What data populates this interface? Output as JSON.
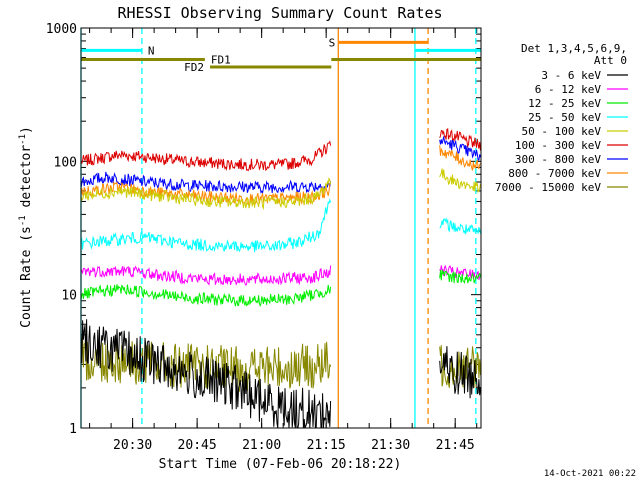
{
  "chart_data": {
    "type": "line",
    "title": "RHESSI Observing Summary Count Rates",
    "xlabel": "Start Time (07-Feb-06 20:18:22)",
    "ylabel_main": "Count Rate (s",
    "ylabel_sup1": "-1",
    "ylabel_mid": " detector",
    "ylabel_sup2": "-1",
    "ylabel_end": ")",
    "yscale": "log",
    "ylim": [
      1,
      1000
    ],
    "xlim_minutes": [
      20.3,
      21.85
    ],
    "y_ticks": [
      {
        "value": 1,
        "label": "1"
      },
      {
        "value": 10,
        "label": "10"
      },
      {
        "value": 100,
        "label": "100"
      },
      {
        "value": 1000,
        "label": "1000"
      }
    ],
    "x_ticks": [
      {
        "value": 20.5,
        "label": "20:30"
      },
      {
        "value": 20.75,
        "label": "20:45"
      },
      {
        "value": 21.0,
        "label": "21:00"
      },
      {
        "value": 21.25,
        "label": "21:15"
      },
      {
        "value": 21.5,
        "label": "21:30"
      },
      {
        "value": 21.75,
        "label": "21:45"
      }
    ],
    "legend_header": [
      "Det 1,3,4,5,6,9,",
      "Att 0"
    ],
    "legend_position": "right",
    "series": [
      {
        "name": "3 - 6 keV",
        "color": "#000000"
      },
      {
        "name": "6 - 12 keV",
        "color": "#ff00ff"
      },
      {
        "name": "12 - 25 keV",
        "color": "#00ee00"
      },
      {
        "name": "25 - 50 keV",
        "color": "#00ffff"
      },
      {
        "name": "50 - 100 keV",
        "color": "#cccc00"
      },
      {
        "name": "100 - 300 keV",
        "color": "#dd0000"
      },
      {
        "name": "300 - 800 keV",
        "color": "#0000ff"
      },
      {
        "name": "800 - 7000 keV",
        "color": "#ff8800"
      },
      {
        "name": "7000 - 15000 keV",
        "color": "#888800"
      }
    ],
    "series_approx": [
      {
        "color": "#dd0000",
        "segments": [
          [
            [
              20.3,
              100
            ],
            [
              20.45,
              112
            ],
            [
              20.55,
              108
            ],
            [
              20.7,
              100
            ],
            [
              20.85,
              96
            ],
            [
              21.0,
              94
            ],
            [
              21.1,
              95
            ],
            [
              21.2,
              105
            ],
            [
              21.27,
              135
            ]
          ],
          [
            [
              21.69,
              165
            ],
            [
              21.75,
              155
            ],
            [
              21.8,
              140
            ],
            [
              21.85,
              132
            ]
          ]
        ]
      },
      {
        "color": "#0000ff",
        "segments": [
          [
            [
              20.3,
              70
            ],
            [
              20.4,
              76
            ],
            [
              20.55,
              70
            ],
            [
              20.7,
              66
            ],
            [
              21.0,
              64
            ],
            [
              21.2,
              65
            ],
            [
              21.27,
              66
            ]
          ],
          [
            [
              21.69,
              145
            ],
            [
              21.75,
              130
            ],
            [
              21.8,
              118
            ],
            [
              21.85,
              108
            ]
          ]
        ]
      },
      {
        "color": "#ff8800",
        "segments": [
          [
            [
              20.3,
              59
            ],
            [
              20.45,
              64
            ],
            [
              20.6,
              58
            ],
            [
              20.8,
              54
            ],
            [
              21.0,
              52
            ],
            [
              21.2,
              54
            ],
            [
              21.27,
              62
            ]
          ],
          [
            [
              21.69,
              122
            ],
            [
              21.75,
              108
            ],
            [
              21.8,
              97
            ],
            [
              21.85,
              90
            ]
          ]
        ]
      },
      {
        "color": "#cccc00",
        "segments": [
          [
            [
              20.3,
              55
            ],
            [
              20.45,
              60
            ],
            [
              20.6,
              55
            ],
            [
              20.8,
              50
            ],
            [
              21.0,
              49
            ],
            [
              21.15,
              50
            ],
            [
              21.22,
              55
            ],
            [
              21.27,
              75
            ]
          ],
          [
            [
              21.69,
              82
            ],
            [
              21.75,
              70
            ],
            [
              21.85,
              62
            ]
          ]
        ]
      },
      {
        "color": "#00ffff",
        "segments": [
          [
            [
              20.3,
              24
            ],
            [
              20.45,
              26
            ],
            [
              20.55,
              27
            ],
            [
              20.7,
              24
            ],
            [
              20.9,
              23
            ],
            [
              21.05,
              23
            ],
            [
              21.15,
              25
            ],
            [
              21.22,
              29
            ],
            [
              21.27,
              55
            ]
          ],
          [
            [
              21.69,
              35
            ],
            [
              21.75,
              32
            ],
            [
              21.85,
              29
            ]
          ]
        ]
      },
      {
        "color": "#ff00ff",
        "segments": [
          [
            [
              20.3,
              15
            ],
            [
              20.5,
              15
            ],
            [
              20.6,
              14
            ],
            [
              20.8,
              13
            ],
            [
              21.0,
              13
            ],
            [
              21.2,
              13.5
            ],
            [
              21.27,
              15
            ]
          ],
          [
            [
              21.69,
              15.5
            ],
            [
              21.75,
              14.5
            ],
            [
              21.85,
              14
            ]
          ]
        ]
      },
      {
        "color": "#00ee00",
        "segments": [
          [
            [
              20.3,
              10
            ],
            [
              20.45,
              11
            ],
            [
              20.55,
              10.5
            ],
            [
              20.7,
              9.5
            ],
            [
              20.9,
              9
            ],
            [
              21.1,
              9.2
            ],
            [
              21.2,
              10
            ],
            [
              21.27,
              11
            ]
          ],
          [
            [
              21.69,
              14
            ],
            [
              21.75,
              13.5
            ],
            [
              21.85,
              13
            ]
          ]
        ]
      },
      {
        "color": "#888800",
        "segments": [
          [
            [
              20.3,
              3.3
            ],
            [
              20.45,
              3.2
            ],
            [
              20.6,
              3.0
            ],
            [
              20.8,
              2.8
            ],
            [
              21.0,
              2.8
            ],
            [
              21.2,
              2.9
            ],
            [
              21.27,
              3.0
            ]
          ],
          [
            [
              21.69,
              3.0
            ],
            [
              21.75,
              2.9
            ],
            [
              21.85,
              2.9
            ]
          ]
        ]
      },
      {
        "color": "#000000",
        "segments": [
          [
            [
              20.3,
              4.6
            ],
            [
              20.4,
              4.0
            ],
            [
              20.5,
              3.5
            ],
            [
              20.6,
              3.0
            ],
            [
              20.75,
              2.4
            ],
            [
              20.9,
              2.0
            ],
            [
              21.0,
              1.6
            ],
            [
              21.1,
              1.4
            ],
            [
              21.2,
              1.3
            ],
            [
              21.27,
              1.3
            ]
          ],
          [
            [
              21.69,
              3.0
            ],
            [
              21.75,
              2.6
            ],
            [
              21.85,
              2.4
            ]
          ]
        ]
      }
    ],
    "annotations": {
      "night_N": {
        "label": "N",
        "color": "#00ffff",
        "start": 20.3,
        "end": 20.536,
        "level": 680
      },
      "night_bar_2": {
        "label": "",
        "color": "#00ffff",
        "start": 21.594,
        "end": 21.85,
        "level": 680
      },
      "saa_S": {
        "label": "S",
        "color": "#ff8800",
        "start": 21.297,
        "end": 21.645,
        "level": 780
      },
      "fd1": {
        "label": "FD1",
        "color": "#888800",
        "start": 20.3,
        "end": 20.78,
        "level": 580
      },
      "fd2": {
        "label": "FD2",
        "color": "#888800",
        "start": 20.8,
        "end": 21.27,
        "level": 510
      },
      "fd3": {
        "label": "",
        "color": "#888800",
        "start": 21.27,
        "end": 21.85,
        "level": 580
      },
      "vlines": [
        {
          "x": 20.3,
          "color": "#00ffff",
          "dashed": false
        },
        {
          "x": 20.536,
          "color": "#00ffff",
          "dashed": true
        },
        {
          "x": 21.297,
          "color": "#ff8800",
          "dashed": false
        },
        {
          "x": 21.594,
          "color": "#00ffff",
          "dashed": false
        },
        {
          "x": 21.645,
          "color": "#ff8800",
          "dashed": true
        },
        {
          "x": 21.83,
          "color": "#00ffff",
          "dashed": true
        }
      ]
    }
  },
  "footer": {
    "timestamp": "14-Oct-2021 00:22"
  }
}
